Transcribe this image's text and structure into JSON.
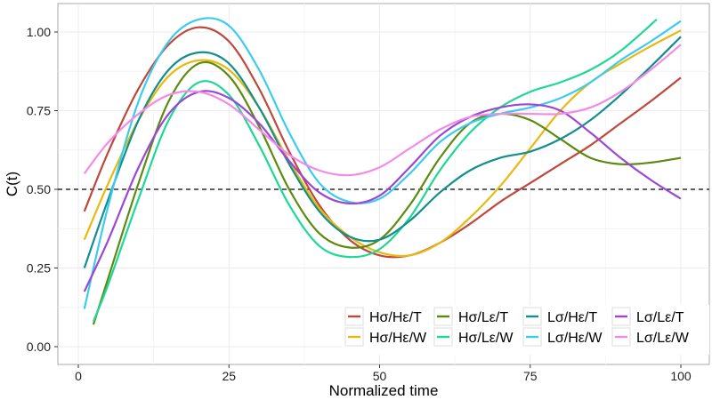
{
  "chart_data": {
    "type": "line",
    "xlabel": "Normalized time",
    "ylabel": "C(t)",
    "xlim": [
      -2,
      103
    ],
    "ylim": [
      -0.05,
      1.09
    ],
    "xticks": [
      0,
      25,
      50,
      75,
      100
    ],
    "yticks": [
      0.0,
      0.25,
      0.5,
      0.75,
      1.0
    ],
    "ytick_labels": [
      "0.00",
      "0.25",
      "0.50",
      "0.75",
      "1.00"
    ],
    "grid": true,
    "reference_line": {
      "y": 0.5,
      "style": "dashed"
    },
    "legend_position": "bottom-right",
    "series": [
      {
        "name": "Hσ/Hε/T",
        "color": "#c0473b",
        "x": [
          1,
          5,
          10,
          15,
          20,
          25,
          30,
          35,
          40,
          45,
          50,
          55,
          60,
          65,
          70,
          75,
          80,
          85,
          90,
          95,
          100
        ],
        "y": [
          0.43,
          0.62,
          0.82,
          0.96,
          1.015,
          0.97,
          0.82,
          0.62,
          0.45,
          0.34,
          0.29,
          0.29,
          0.33,
          0.39,
          0.46,
          0.52,
          0.58,
          0.64,
          0.71,
          0.78,
          0.855
        ]
      },
      {
        "name": "Hσ/Hε/W",
        "color": "#e8b90e",
        "x": [
          1,
          5,
          10,
          15,
          20,
          25,
          30,
          35,
          40,
          45,
          50,
          55,
          60,
          65,
          70,
          75,
          80,
          85,
          90,
          95,
          100
        ],
        "y": [
          0.34,
          0.52,
          0.72,
          0.86,
          0.91,
          0.88,
          0.76,
          0.59,
          0.44,
          0.35,
          0.3,
          0.29,
          0.33,
          0.41,
          0.51,
          0.63,
          0.75,
          0.84,
          0.9,
          0.955,
          1.005
        ]
      },
      {
        "name": "Hσ/Lε/T",
        "color": "#5b8a0f",
        "x": [
          2.5,
          5,
          10,
          15,
          20,
          25,
          30,
          35,
          40,
          45,
          50,
          55,
          60,
          65,
          70,
          75,
          80,
          85,
          90,
          95,
          100
        ],
        "y": [
          0.07,
          0.22,
          0.52,
          0.78,
          0.9,
          0.86,
          0.7,
          0.5,
          0.36,
          0.315,
          0.34,
          0.45,
          0.6,
          0.71,
          0.74,
          0.72,
          0.66,
          0.6,
          0.58,
          0.585,
          0.6
        ]
      },
      {
        "name": "Hσ/Lε/W",
        "color": "#1ed895",
        "x": [
          2.5,
          5,
          10,
          15,
          20,
          25,
          30,
          35,
          40,
          45,
          50,
          55,
          60,
          65,
          70,
          75,
          80,
          85,
          90,
          96
        ],
        "y": [
          0.08,
          0.2,
          0.47,
          0.72,
          0.84,
          0.8,
          0.64,
          0.45,
          0.32,
          0.285,
          0.31,
          0.41,
          0.56,
          0.68,
          0.76,
          0.81,
          0.84,
          0.88,
          0.94,
          1.04
        ]
      },
      {
        "name": "Lσ/Hε/T",
        "color": "#138e8e",
        "x": [
          1,
          5,
          10,
          15,
          20,
          25,
          30,
          35,
          40,
          45,
          50,
          55,
          60,
          65,
          70,
          75,
          80,
          85,
          90,
          95,
          100
        ],
        "y": [
          0.25,
          0.47,
          0.72,
          0.88,
          0.935,
          0.9,
          0.76,
          0.58,
          0.43,
          0.35,
          0.34,
          0.4,
          0.49,
          0.56,
          0.6,
          0.62,
          0.66,
          0.72,
          0.8,
          0.89,
          0.985
        ]
      },
      {
        "name": "Lσ/Hε/W",
        "color": "#3ccbf0",
        "x": [
          1,
          5,
          10,
          15,
          20,
          25,
          30,
          35,
          40,
          45,
          50,
          55,
          60,
          65,
          70,
          75,
          80,
          85,
          90,
          95,
          100
        ],
        "y": [
          0.12,
          0.45,
          0.78,
          0.97,
          1.04,
          1.02,
          0.88,
          0.68,
          0.52,
          0.46,
          0.47,
          0.55,
          0.65,
          0.71,
          0.74,
          0.76,
          0.79,
          0.84,
          0.91,
          0.97,
          1.035
        ]
      },
      {
        "name": "Lσ/Lε/T",
        "color": "#9b47d6",
        "x": [
          1,
          5,
          10,
          15,
          20,
          25,
          30,
          35,
          40,
          45,
          50,
          55,
          60,
          65,
          70,
          75,
          80,
          85,
          90,
          95,
          100
        ],
        "y": [
          0.175,
          0.34,
          0.57,
          0.74,
          0.81,
          0.79,
          0.71,
          0.59,
          0.49,
          0.455,
          0.48,
          0.57,
          0.67,
          0.73,
          0.76,
          0.77,
          0.75,
          0.68,
          0.6,
          0.53,
          0.47
        ]
      },
      {
        "name": "Lσ/Lε/W",
        "color": "#f48ae8",
        "x": [
          1,
          5,
          10,
          15,
          20,
          25,
          30,
          35,
          40,
          45,
          50,
          55,
          60,
          65,
          70,
          75,
          80,
          85,
          90,
          95,
          100
        ],
        "y": [
          0.55,
          0.65,
          0.74,
          0.8,
          0.81,
          0.77,
          0.69,
          0.61,
          0.56,
          0.545,
          0.57,
          0.63,
          0.69,
          0.73,
          0.74,
          0.74,
          0.74,
          0.76,
          0.81,
          0.88,
          0.96
        ]
      }
    ]
  }
}
